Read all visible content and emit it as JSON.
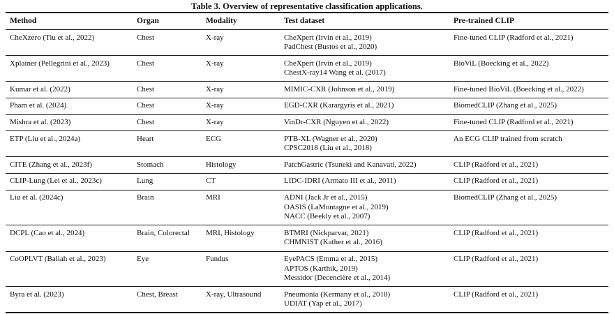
{
  "caption": "Table 3. Overview of representative classification applications.",
  "table": {
    "headers": [
      "Method",
      "Organ",
      "Modality",
      "Test dataset",
      "Pre-trained CLIP"
    ],
    "rows": [
      {
        "method": "CheXzero (Tiu et al., 2022)",
        "organ": "Chest",
        "modality": "X-ray",
        "test_dataset": "CheXpert (Irvin et al., 2019)\nPadChest (Bustos et al., 2020)",
        "pretrained_clip": "Fine-tuned CLIP (Radford et al., 2021)"
      },
      {
        "method": "Xplainer (Pellegrini et al., 2023)",
        "organ": "Chest",
        "modality": "X-ray",
        "test_dataset": "CheXpert (Irvin et al., 2019)\nChestX-ray14 Wang et al. (2017)",
        "pretrained_clip": "BioViL (Boecking et al., 2022)"
      },
      {
        "method": "Kumar et al. (2022)",
        "organ": "Chest",
        "modality": "X-ray",
        "test_dataset": "MIMIC-CXR (Johnson et al., 2019)",
        "pretrained_clip": "Fine-tuned BioViL (Boecking et al., 2022)"
      },
      {
        "method": "Pham et al. (2024)",
        "organ": "Chest",
        "modality": "X-ray",
        "test_dataset": "EGD-CXR (Karargyris et al., 2021)",
        "pretrained_clip": "BiomedCLIP (Zhang et al., 2025)"
      },
      {
        "method": "Mishra et al. (2023)",
        "organ": "Chest",
        "modality": "X-ray",
        "test_dataset": "VinDr-CXR (Nguyen et al., 2022)",
        "pretrained_clip": "Fine-tuned CLIP (Radford et al., 2021)"
      },
      {
        "method": "ETP (Liu et al., 2024a)",
        "organ": "Heart",
        "modality": "ECG",
        "test_dataset": "PTB-XL (Wagner et al., 2020)\nCPSC2018 (Liu et al., 2018)",
        "pretrained_clip": "An ECG CLIP trained from scratch"
      },
      {
        "method": "CITE (Zhang et al., 2023f)",
        "organ": "Stomach",
        "modality": "Histology",
        "test_dataset": "PatchGastric (Tsuneki and Kanavati, 2022)",
        "pretrained_clip": "CLIP (Radford et al., 2021)"
      },
      {
        "method": "CLIP-Lung (Lei et al., 2023c)",
        "organ": "Lung",
        "modality": "CT",
        "test_dataset": "LIDC-IDRI (Armato III et al., 2011)",
        "pretrained_clip": "CLIP (Radford et al., 2021)"
      },
      {
        "method": "Liu et al. (2024c)",
        "organ": "Brain",
        "modality": "MRI",
        "test_dataset": "ADNI (Jack Jr et al., 2015)\nOASIS (LaMontagne et al., 2019)\nNACC (Beekly et al., 2007)",
        "pretrained_clip": "BiomedCLIP (Zhang et al., 2025)"
      },
      {
        "method": "DCPL (Cao et al., 2024)",
        "organ": "Brain, Colorectal",
        "modality": "MRI, Histology",
        "test_dataset": "BTMRI (Nickparvar, 2021)\nCHMNIST (Kather et al., 2016)",
        "pretrained_clip": "CLIP (Radford et al., 2021)"
      },
      {
        "method": "CoOPLVT (Baliah et al., 2023)",
        "organ": "Eye",
        "modality": "Fundus",
        "test_dataset": "EyePACS (Emma et al., 2015)\nAPTOS (Karthik, 2019)\nMessidor (Decencière et al., 2014)",
        "pretrained_clip": "CLIP (Radford et al., 2021)"
      },
      {
        "method": "Byra et al. (2023)",
        "organ": "Chest, Breast",
        "modality": "X-ray, Ultrasound",
        "test_dataset": "Pneumonia (Kermany et al., 2018)\nUDIAT (Yap et al., 2017)",
        "pretrained_clip": "CLIP (Radford et al., 2021)"
      }
    ]
  }
}
